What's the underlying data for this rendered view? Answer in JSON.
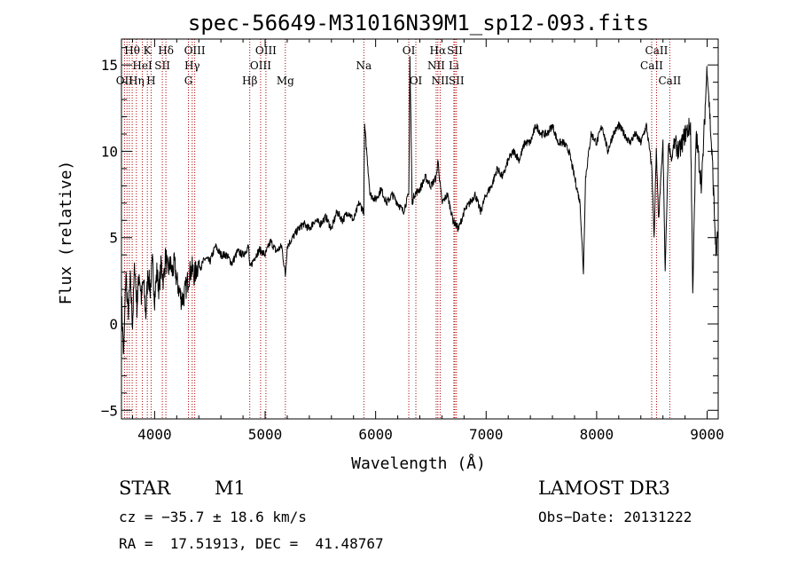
{
  "chart_data": {
    "type": "line",
    "title": "spec-56649-M31016N39M1_sp12-093.fits",
    "xlabel": "Wavelength (Å)",
    "ylabel": "Flux (relative)",
    "xlim": [
      3700,
      9100
    ],
    "ylim": [
      -5.5,
      16.5
    ],
    "x_ticks": [
      4000,
      5000,
      6000,
      7000,
      8000,
      9000
    ],
    "y_ticks": [
      -5,
      0,
      5,
      10,
      15
    ],
    "x_tick_labels": [
      "4000",
      "5000",
      "6000",
      "7000",
      "8000",
      "9000"
    ],
    "y_tick_labels": [
      "−5",
      "0",
      "5",
      "10",
      "15"
    ],
    "grid": false,
    "series": [
      {
        "x": [
          3700,
          3720,
          3740,
          3760,
          3780,
          3800,
          3820,
          3840,
          3860,
          3880,
          3900,
          3920,
          3940,
          3960,
          3980,
          4000,
          4020,
          4040,
          4060,
          4080,
          4100,
          4120,
          4140,
          4160,
          4180,
          4200,
          4220,
          4240,
          4260,
          4280,
          4300,
          4320,
          4340,
          4360,
          4380,
          4400,
          4420,
          4440,
          4460,
          4480,
          4500,
          4550,
          4600,
          4650,
          4700,
          4750,
          4800,
          4850,
          4861,
          4900,
          4950,
          5000,
          5050,
          5100,
          5150,
          5183,
          5200,
          5250,
          5300,
          5350,
          5400,
          5450,
          5500,
          5550,
          5600,
          5650,
          5700,
          5750,
          5800,
          5850,
          5893,
          5900,
          5950,
          6000,
          6050,
          6100,
          6150,
          6200,
          6250,
          6300,
          6310,
          6330,
          6350,
          6400,
          6450,
          6500,
          6550,
          6563,
          6600,
          6650,
          6700,
          6750,
          6800,
          6850,
          6900,
          6950,
          7000,
          7050,
          7100,
          7150,
          7200,
          7250,
          7300,
          7350,
          7400,
          7450,
          7500,
          7550,
          7600,
          7650,
          7700,
          7750,
          7800,
          7850,
          7880,
          7900,
          7950,
          8000,
          8050,
          8100,
          8150,
          8200,
          8250,
          8300,
          8350,
          8400,
          8450,
          8500,
          8520,
          8540,
          8560,
          8600,
          8620,
          8650,
          8680,
          8700,
          8750,
          8800,
          8850,
          8870,
          8900,
          8950,
          9000,
          9050,
          9080,
          9100
        ],
        "y": [
          1.5,
          -2.0,
          3.0,
          0.5,
          2.5,
          0.0,
          3.5,
          1.0,
          3.0,
          1.5,
          2.5,
          0.5,
          3.0,
          2.0,
          3.5,
          1.5,
          3.0,
          2.0,
          3.5,
          2.5,
          4.0,
          3.0,
          3.5,
          3.0,
          3.5,
          2.5,
          2.0,
          1.5,
          1.5,
          2.0,
          2.5,
          3.0,
          3.2,
          2.8,
          3.2,
          3.5,
          3.3,
          3.6,
          3.8,
          3.7,
          3.6,
          4.5,
          4.0,
          4.0,
          3.5,
          4.2,
          4.0,
          4.5,
          3.2,
          3.8,
          4.3,
          4.0,
          4.8,
          4.2,
          4.5,
          2.8,
          4.5,
          5.0,
          5.5,
          5.8,
          5.5,
          6.0,
          5.8,
          6.2,
          5.5,
          6.5,
          6.0,
          6.5,
          6.0,
          7.0,
          6.5,
          11.5,
          7.5,
          7.2,
          7.8,
          7.0,
          7.5,
          7.0,
          6.5,
          7.5,
          15.5,
          7.0,
          7.5,
          7.8,
          8.5,
          8.0,
          8.5,
          9.5,
          7.0,
          7.5,
          6.0,
          5.5,
          6.5,
          7.0,
          7.5,
          6.5,
          7.5,
          8.0,
          9.0,
          8.5,
          9.5,
          10.0,
          9.5,
          10.5,
          10.5,
          11.5,
          11.0,
          11.0,
          11.5,
          10.5,
          10.5,
          10.0,
          8.5,
          7.0,
          3.0,
          8.5,
          11.0,
          10.5,
          11.5,
          10.0,
          11.0,
          11.5,
          11.0,
          10.5,
          11.0,
          10.5,
          11.5,
          9.0,
          5.0,
          10.0,
          6.0,
          10.5,
          3.0,
          10.5,
          9.5,
          10.5,
          10.0,
          11.0,
          11.5,
          2.0,
          11.0,
          8.0,
          15.0,
          9.0,
          4.0,
          5.5
        ]
      }
    ],
    "line_labels": [
      {
        "label": "Hθ",
        "x": 3797,
        "row": 1
      },
      {
        "label": "OII",
        "x": 3727,
        "row": 3
      },
      {
        "label": "Hη",
        "x": 3835,
        "row": 3
      },
      {
        "label": "HeI",
        "x": 3889,
        "row": 2
      },
      {
        "label": "K",
        "x": 3934,
        "row": 1
      },
      {
        "label": "H",
        "x": 3968,
        "row": 3
      },
      {
        "label": "Hδ",
        "x": 4102,
        "row": 1
      },
      {
        "label": "SII",
        "x": 4070,
        "row": 2
      },
      {
        "label": "OIII",
        "x": 4363,
        "row": 1
      },
      {
        "label": "Hγ",
        "x": 4340,
        "row": 2
      },
      {
        "label": "G",
        "x": 4306,
        "row": 3
      },
      {
        "label": "Hβ",
        "x": 4861,
        "row": 3
      },
      {
        "label": "OIII",
        "x": 5007,
        "row": 1
      },
      {
        "label": "OIII",
        "x": 4959,
        "row": 2
      },
      {
        "label": "Mg",
        "x": 5183,
        "row": 3
      },
      {
        "label": "Na",
        "x": 5893,
        "row": 2
      },
      {
        "label": "OI",
        "x": 6300,
        "row": 1
      },
      {
        "label": "OI",
        "x": 6364,
        "row": 3
      },
      {
        "label": "Hα",
        "x": 6563,
        "row": 1
      },
      {
        "label": "SII",
        "x": 6717,
        "row": 1
      },
      {
        "label": "NII",
        "x": 6548,
        "row": 2
      },
      {
        "label": "Li",
        "x": 6708,
        "row": 2
      },
      {
        "label": "NII",
        "x": 6584,
        "row": 3
      },
      {
        "label": "SII",
        "x": 6731,
        "row": 3
      },
      {
        "label": "CaII",
        "x": 8542,
        "row": 1
      },
      {
        "label": "CaII",
        "x": 8498,
        "row": 2
      },
      {
        "label": "CaII",
        "x": 8662,
        "row": 3
      }
    ],
    "line_markers": [
      3727,
      3750,
      3771,
      3797,
      3835,
      3889,
      3934,
      3968,
      4070,
      4102,
      4306,
      4340,
      4363,
      4861,
      4959,
      5007,
      5183,
      5893,
      6300,
      6364,
      6548,
      6563,
      6584,
      6708,
      6717,
      6731,
      8498,
      8542,
      8662
    ],
    "colors": {
      "spectrum": "#000000",
      "markers": "#b00000",
      "axes": "#000000"
    }
  },
  "info": {
    "object_type": "STAR",
    "subclass": "M1",
    "release": "LAMOST DR3",
    "redshift": "cz = −35.7 ± 18.6 km/s",
    "obs_date": "Obs−Date: 20131222",
    "coords": "RA =  17.51913, DEC =  41.48767"
  }
}
